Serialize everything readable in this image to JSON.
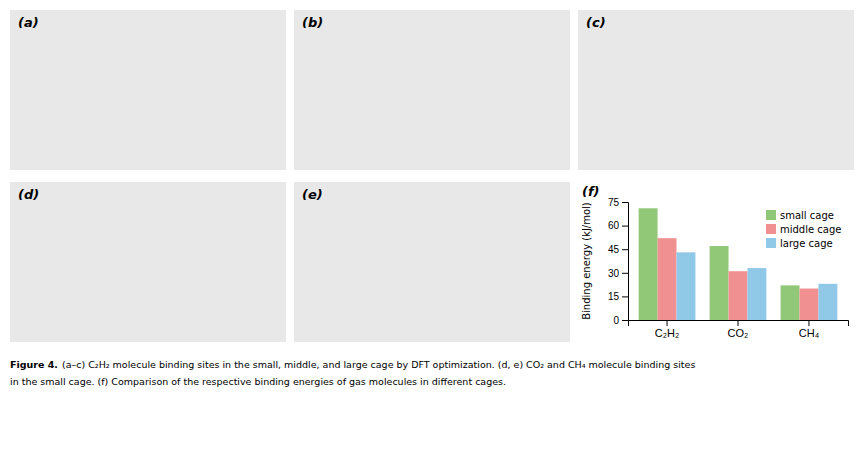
{
  "chart_data": {
    "type": "bar",
    "categories": [
      "C₂H₂",
      "CO₂",
      "CH₄"
    ],
    "series": [
      {
        "name": "small cage",
        "color": "#90c878",
        "values": [
          71,
          47,
          22
        ]
      },
      {
        "name": "middle cage",
        "color": "#f09090",
        "values": [
          52,
          31,
          20
        ]
      },
      {
        "name": "large cage",
        "color": "#90c8e8",
        "values": [
          43,
          33,
          23
        ]
      }
    ],
    "ylabel": "Binding energy (kJ/mol)",
    "ylim": [
      0,
      75
    ],
    "yticks": [
      0,
      15,
      30,
      45,
      60,
      75
    ],
    "grid": false,
    "legend": "upper right",
    "annotations": [
      "(a)",
      "(b)",
      "(c)",
      "(d)",
      "(e)",
      "(f)",
      "Figure 4.",
      "(a–c) C₂H₂ molecule binding sites in the small, middle, and large cage by DFT optimization. (d, e) CO₂ and CH₄ molecule binding sites",
      "in the small cage. (f) Comparison of the respective binding energies of gas molecules in different cages."
    ]
  }
}
